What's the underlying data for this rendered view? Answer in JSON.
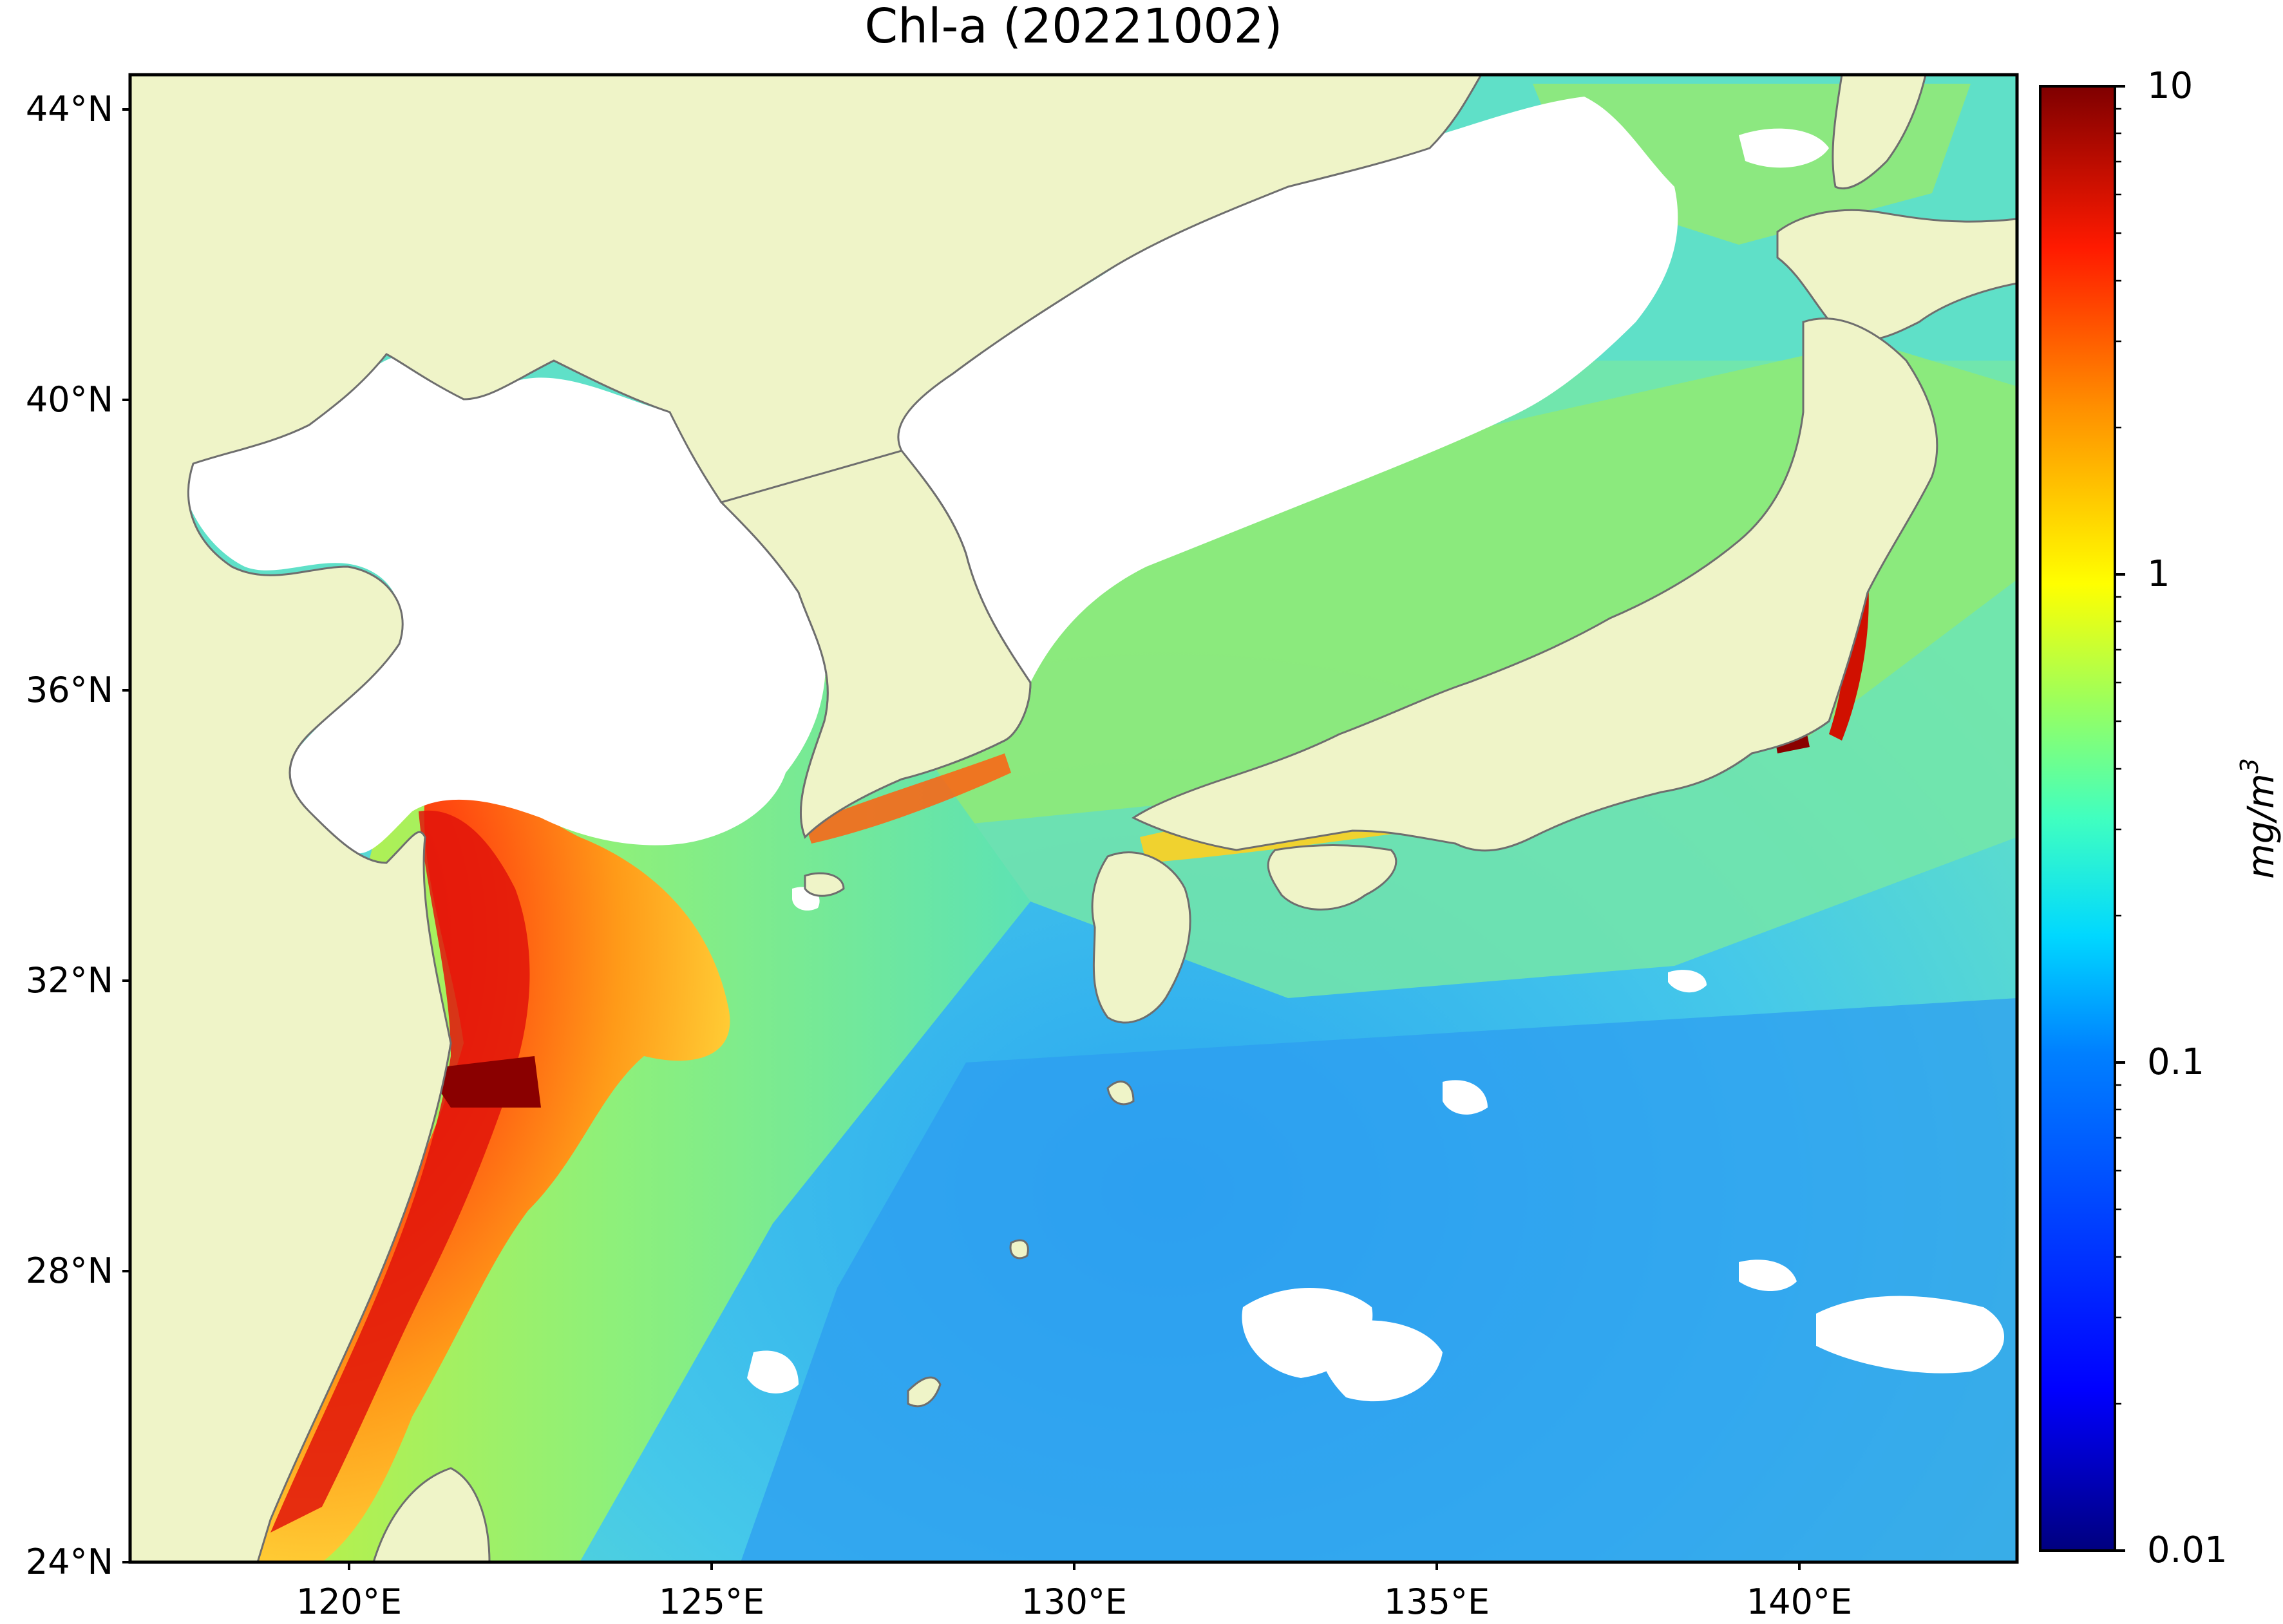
{
  "title": "Chl-a (20221002)",
  "colorbar": {
    "label": "mg/m",
    "label_sup": "3",
    "scale": "log",
    "range": [
      0.01,
      10
    ],
    "ticks": [
      "10",
      "1",
      "0.1",
      "0.01"
    ],
    "colormap": [
      "#00007f",
      "#0000ff",
      "#007fff",
      "#00ffff",
      "#7fff7f",
      "#ffff00",
      "#ff7f00",
      "#ff0000",
      "#7f0000"
    ]
  },
  "lat_ticks": [
    "44°N",
    "40°N",
    "36°N",
    "32°N",
    "28°N",
    "24°N"
  ],
  "lon_ticks": [
    "120°E",
    "125°E",
    "130°E",
    "135°E",
    "140°E"
  ],
  "map": {
    "lon_range": [
      117,
      143
    ],
    "lat_range": [
      24,
      44.5
    ],
    "land_color": "#eff4c8",
    "coast_color": "#6e6e6e",
    "cloud_color": "#ffffff"
  }
}
